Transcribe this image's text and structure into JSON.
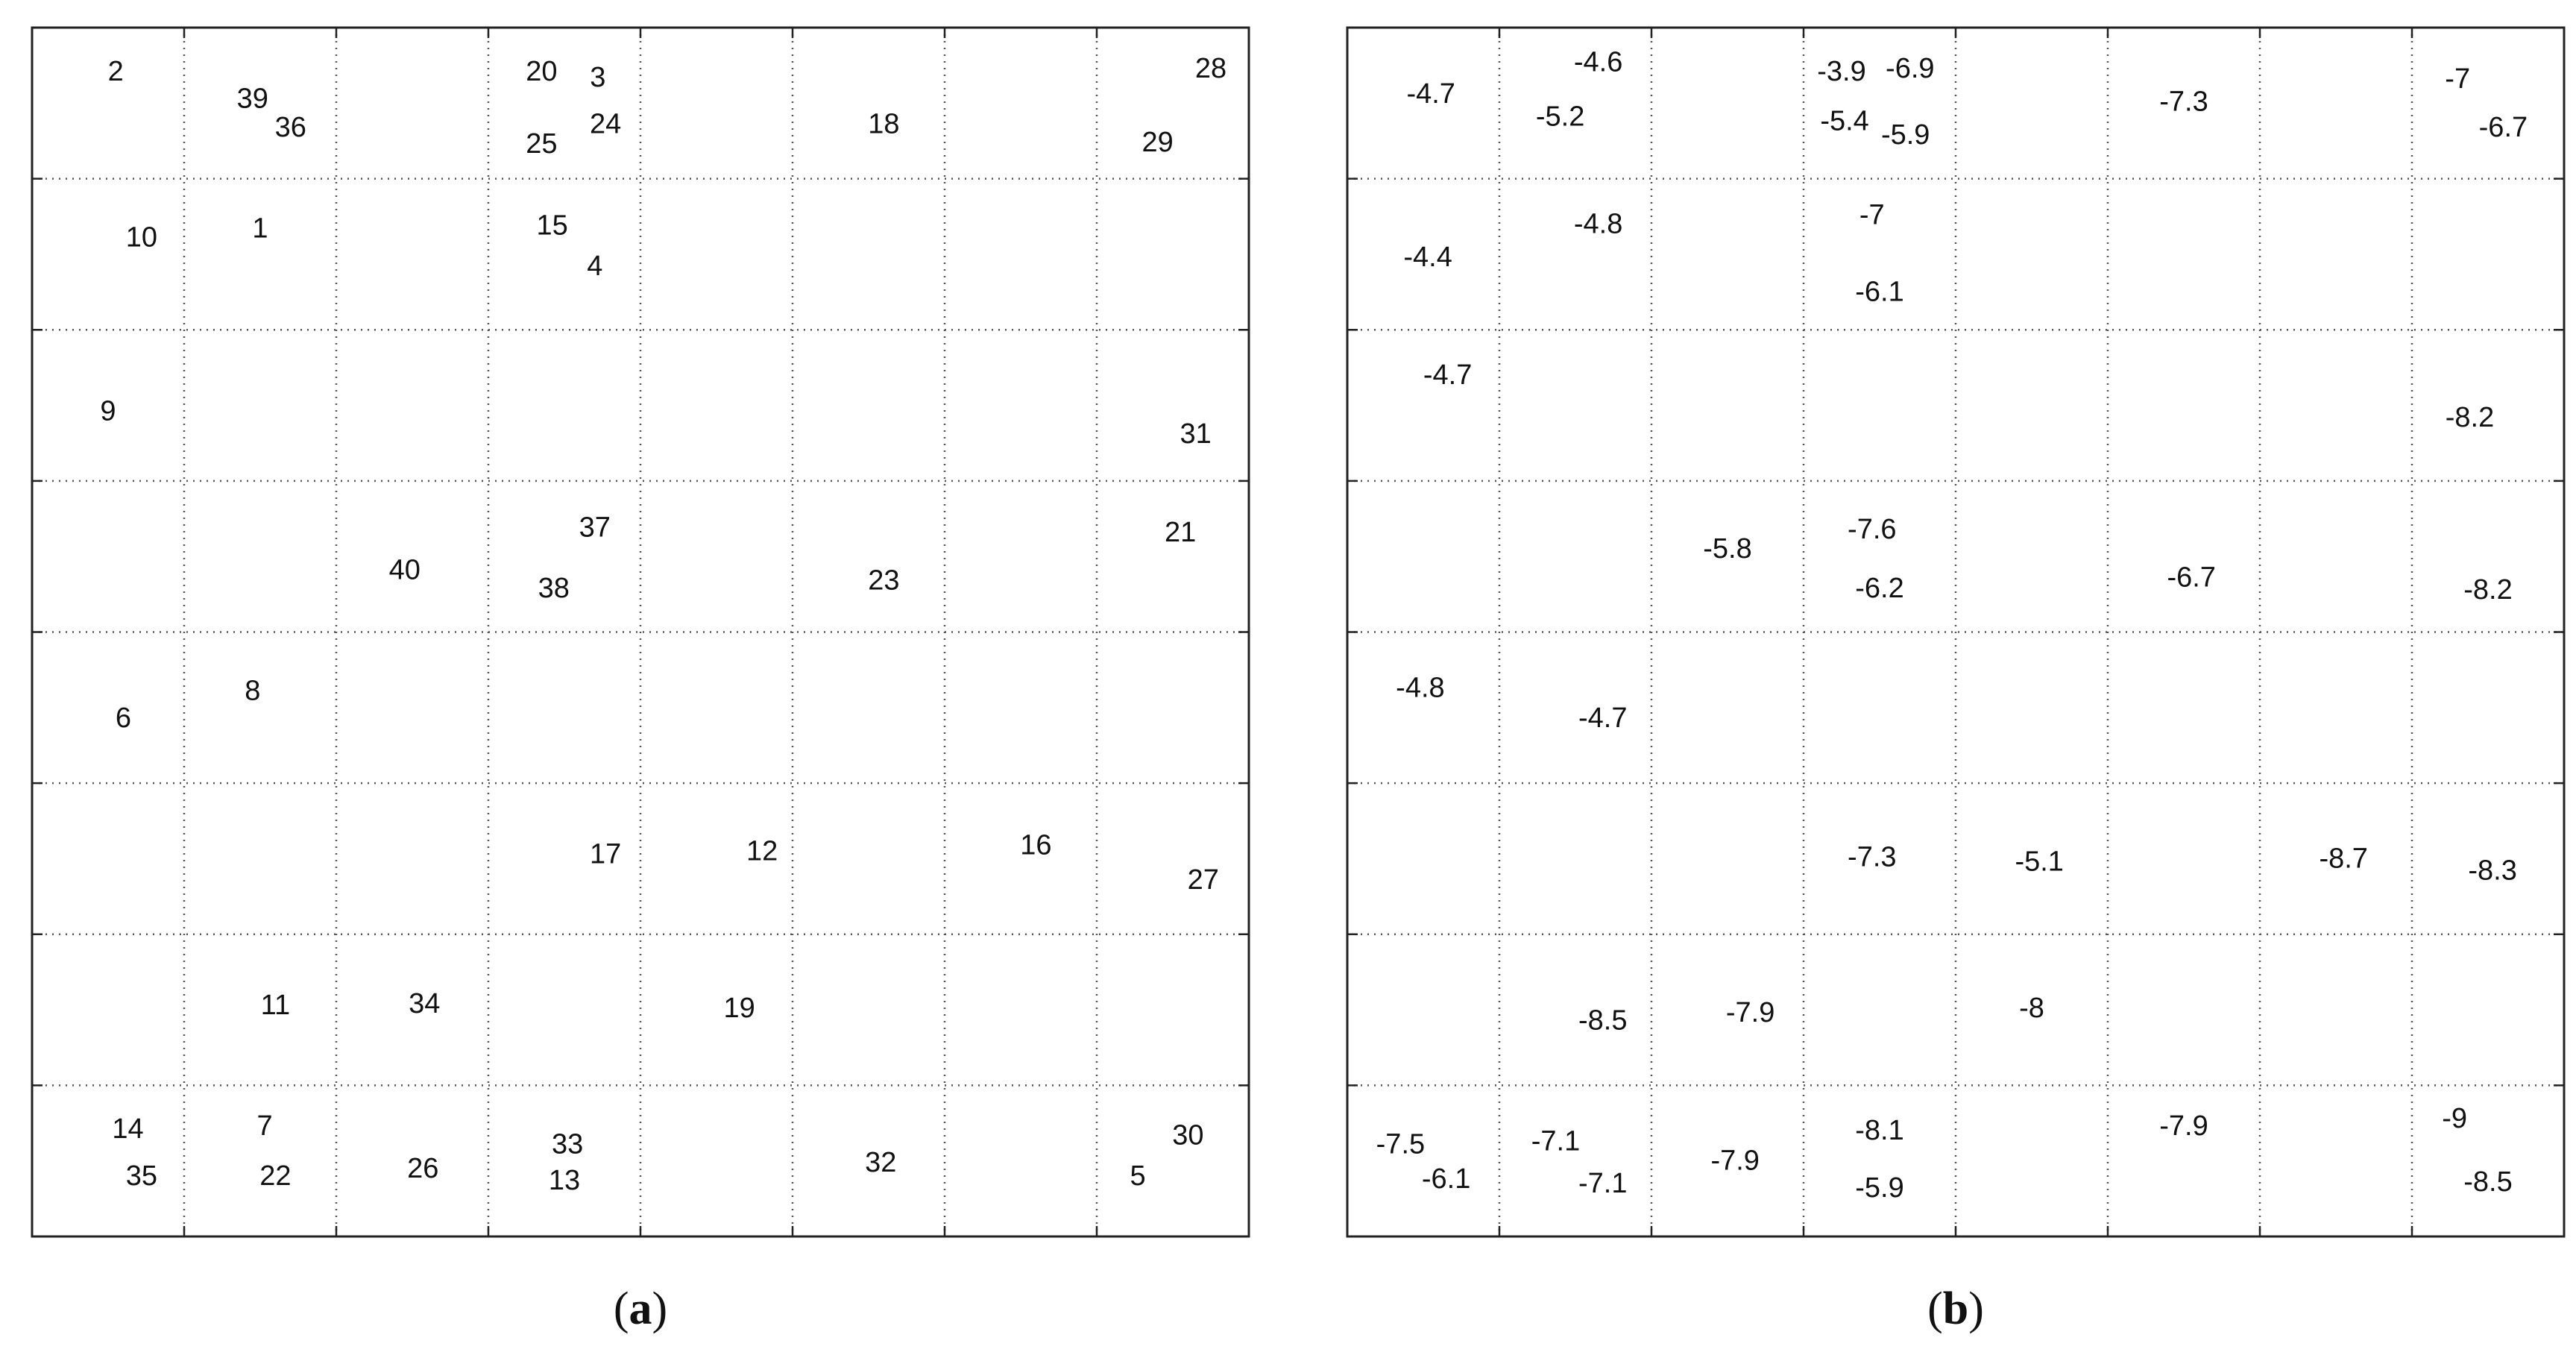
{
  "chart_data": [
    {
      "type": "scatter",
      "panel_label": "(a)",
      "panel_letter": "a",
      "grid": true,
      "xlim": [
        0,
        8
      ],
      "ylim": [
        0,
        8
      ],
      "points": [
        {
          "x": 0.55,
          "y": 7.7,
          "label": "2"
        },
        {
          "x": 1.45,
          "y": 7.52,
          "label": "39"
        },
        {
          "x": 1.7,
          "y": 7.33,
          "label": "36"
        },
        {
          "x": 3.35,
          "y": 7.7,
          "label": "20"
        },
        {
          "x": 3.72,
          "y": 7.66,
          "label": "3"
        },
        {
          "x": 3.35,
          "y": 7.22,
          "label": "25"
        },
        {
          "x": 3.77,
          "y": 7.35,
          "label": "24"
        },
        {
          "x": 5.6,
          "y": 7.35,
          "label": "18"
        },
        {
          "x": 7.75,
          "y": 7.72,
          "label": "28"
        },
        {
          "x": 7.4,
          "y": 7.23,
          "label": "29"
        },
        {
          "x": 0.72,
          "y": 6.6,
          "label": "10"
        },
        {
          "x": 1.5,
          "y": 6.66,
          "label": "1"
        },
        {
          "x": 3.42,
          "y": 6.68,
          "label": "15"
        },
        {
          "x": 3.7,
          "y": 6.41,
          "label": "4"
        },
        {
          "x": 0.5,
          "y": 5.45,
          "label": "9"
        },
        {
          "x": 7.65,
          "y": 5.3,
          "label": "31"
        },
        {
          "x": 3.7,
          "y": 4.68,
          "label": "37"
        },
        {
          "x": 2.45,
          "y": 4.4,
          "label": "40"
        },
        {
          "x": 3.43,
          "y": 4.28,
          "label": "38"
        },
        {
          "x": 5.6,
          "y": 4.33,
          "label": "23"
        },
        {
          "x": 7.55,
          "y": 4.65,
          "label": "21"
        },
        {
          "x": 1.45,
          "y": 3.6,
          "label": "8"
        },
        {
          "x": 0.6,
          "y": 3.42,
          "label": "6"
        },
        {
          "x": 3.77,
          "y": 2.52,
          "label": "17"
        },
        {
          "x": 4.8,
          "y": 2.54,
          "label": "12"
        },
        {
          "x": 6.6,
          "y": 2.58,
          "label": "16"
        },
        {
          "x": 7.7,
          "y": 2.35,
          "label": "27"
        },
        {
          "x": 1.6,
          "y": 1.52,
          "label": "11"
        },
        {
          "x": 2.58,
          "y": 1.53,
          "label": "34"
        },
        {
          "x": 4.65,
          "y": 1.5,
          "label": "19"
        },
        {
          "x": 0.63,
          "y": 0.7,
          "label": "14"
        },
        {
          "x": 1.53,
          "y": 0.72,
          "label": "7"
        },
        {
          "x": 0.72,
          "y": 0.39,
          "label": "35"
        },
        {
          "x": 1.6,
          "y": 0.39,
          "label": "22"
        },
        {
          "x": 2.57,
          "y": 0.44,
          "label": "26"
        },
        {
          "x": 3.52,
          "y": 0.6,
          "label": "33"
        },
        {
          "x": 3.5,
          "y": 0.36,
          "label": "13"
        },
        {
          "x": 5.58,
          "y": 0.48,
          "label": "32"
        },
        {
          "x": 7.6,
          "y": 0.66,
          "label": "30"
        },
        {
          "x": 7.27,
          "y": 0.39,
          "label": "5"
        }
      ]
    },
    {
      "type": "scatter",
      "panel_label": "(b)",
      "panel_letter": "b",
      "grid": true,
      "xlim": [
        0,
        8
      ],
      "ylim": [
        0,
        8
      ],
      "points": [
        {
          "x": 0.55,
          "y": 7.55,
          "label": "-4.7"
        },
        {
          "x": 1.65,
          "y": 7.76,
          "label": "-4.6"
        },
        {
          "x": 1.4,
          "y": 7.4,
          "label": "-5.2"
        },
        {
          "x": 3.25,
          "y": 7.7,
          "label": "-3.9"
        },
        {
          "x": 3.7,
          "y": 7.72,
          "label": "-6.9"
        },
        {
          "x": 3.27,
          "y": 7.37,
          "label": "-5.4"
        },
        {
          "x": 3.67,
          "y": 7.28,
          "label": "-5.9"
        },
        {
          "x": 5.5,
          "y": 7.5,
          "label": "-7.3"
        },
        {
          "x": 7.3,
          "y": 7.65,
          "label": "-7"
        },
        {
          "x": 7.6,
          "y": 7.33,
          "label": "-6.7"
        },
        {
          "x": 0.53,
          "y": 6.47,
          "label": "-4.4"
        },
        {
          "x": 1.65,
          "y": 6.69,
          "label": "-4.8"
        },
        {
          "x": 3.45,
          "y": 6.75,
          "label": "-7"
        },
        {
          "x": 3.5,
          "y": 6.24,
          "label": "-6.1"
        },
        {
          "x": 0.66,
          "y": 5.69,
          "label": "-4.7"
        },
        {
          "x": 7.38,
          "y": 5.41,
          "label": "-8.2"
        },
        {
          "x": 2.5,
          "y": 4.54,
          "label": "-5.8"
        },
        {
          "x": 3.45,
          "y": 4.67,
          "label": "-7.6"
        },
        {
          "x": 3.5,
          "y": 4.28,
          "label": "-6.2"
        },
        {
          "x": 5.55,
          "y": 4.35,
          "label": "-6.7"
        },
        {
          "x": 7.5,
          "y": 4.27,
          "label": "-8.2"
        },
        {
          "x": 0.48,
          "y": 3.62,
          "label": "-4.8"
        },
        {
          "x": 1.68,
          "y": 3.42,
          "label": "-4.7"
        },
        {
          "x": 3.45,
          "y": 2.5,
          "label": "-7.3"
        },
        {
          "x": 4.55,
          "y": 2.47,
          "label": "-5.1"
        },
        {
          "x": 6.55,
          "y": 2.49,
          "label": "-8.7"
        },
        {
          "x": 7.53,
          "y": 2.41,
          "label": "-8.3"
        },
        {
          "x": 1.68,
          "y": 1.42,
          "label": "-8.5"
        },
        {
          "x": 2.65,
          "y": 1.47,
          "label": "-7.9"
        },
        {
          "x": 4.5,
          "y": 1.5,
          "label": "-8"
        },
        {
          "x": 0.35,
          "y": 0.6,
          "label": "-7.5"
        },
        {
          "x": 0.65,
          "y": 0.37,
          "label": "-6.1"
        },
        {
          "x": 1.37,
          "y": 0.62,
          "label": "-7.1"
        },
        {
          "x": 1.68,
          "y": 0.34,
          "label": "-7.1"
        },
        {
          "x": 2.55,
          "y": 0.49,
          "label": "-7.9"
        },
        {
          "x": 3.5,
          "y": 0.69,
          "label": "-8.1"
        },
        {
          "x": 3.5,
          "y": 0.31,
          "label": "-5.9"
        },
        {
          "x": 5.5,
          "y": 0.72,
          "label": "-7.9"
        },
        {
          "x": 7.28,
          "y": 0.77,
          "label": "-9"
        },
        {
          "x": 7.5,
          "y": 0.35,
          "label": "-8.5"
        }
      ]
    }
  ]
}
